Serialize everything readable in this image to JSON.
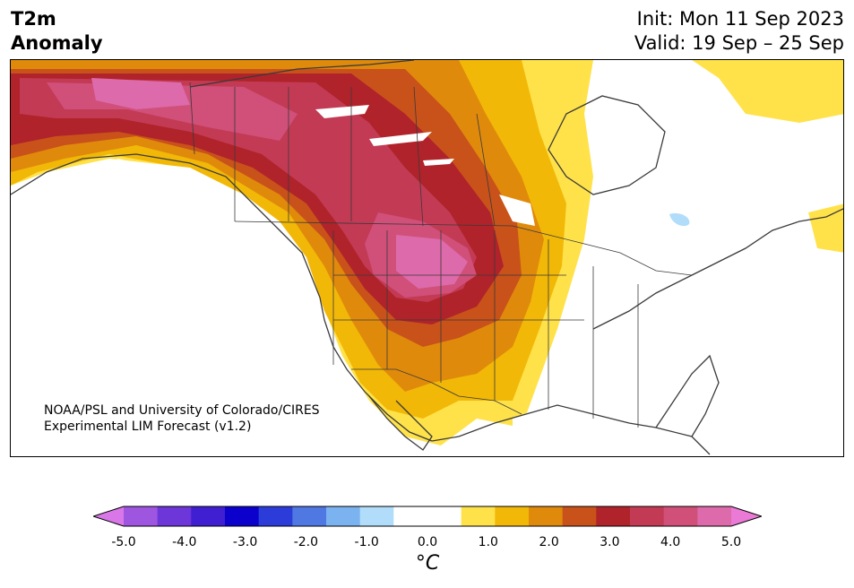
{
  "header": {
    "title": "T2m\nAnomaly",
    "init": "Init: Mon 11 Sep 2023",
    "valid": "Valid: 19 Sep – 25 Sep"
  },
  "credit": {
    "line1": "NOAA/PSL and University of Colorado/CIRES",
    "line2": "Experimental LIM Forecast (v1.2)"
  },
  "colorbar": {
    "unit": "°C",
    "ticks": [
      "-5.0",
      "-4.0",
      "-3.0",
      "-2.0",
      "-1.0",
      "0.0",
      "1.0",
      "2.0",
      "3.0",
      "4.0",
      "5.0"
    ],
    "colors": [
      "#d977e8",
      "#9e55e0",
      "#6c36d9",
      "#3f1fd1",
      "#0b00cc",
      "#2b3cd9",
      "#4f78e3",
      "#7bb3f0",
      "#b1ddfa",
      "#ffffff",
      "#ffffff",
      "#ffe24a",
      "#f2b807",
      "#e08a0c",
      "#c8521a",
      "#b0232a",
      "#c33a55",
      "#d0507a",
      "#dd6aaa",
      "#ea7ad6"
    ]
  }
}
